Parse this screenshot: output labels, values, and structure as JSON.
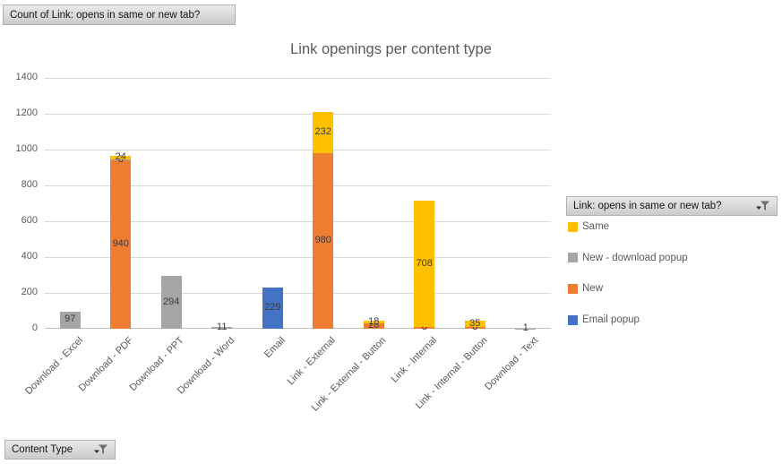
{
  "buttons": {
    "values_field": "Count of Link: opens in same or new tab?",
    "legend_field": "Link: opens in same or new tab?",
    "axis_field": "Content Type"
  },
  "chart_data": {
    "type": "bar",
    "stacked": true,
    "title": "Link openings per content type",
    "categories": [
      "Download - Excel",
      "Download - PDF",
      "Download - PPT",
      "Download - Word",
      "Email",
      "Link - External",
      "Link - External - Button",
      "Link - Internal",
      "Link - Internal - Button",
      "Download - Text"
    ],
    "series": [
      {
        "name": "Email popup",
        "color": "#4472C4",
        "values": [
          0,
          0,
          0,
          0,
          229,
          0,
          0,
          0,
          0,
          0
        ]
      },
      {
        "name": "New",
        "color": "#ED7D31",
        "values": [
          0,
          940,
          0,
          0,
          0,
          980,
          28,
          8,
          8,
          0
        ]
      },
      {
        "name": "New - download popup",
        "color": "#A5A5A5",
        "values": [
          97,
          3,
          294,
          11,
          0,
          0,
          0,
          0,
          0,
          1
        ]
      },
      {
        "name": "Same",
        "color": "#FFC000",
        "values": [
          0,
          24,
          0,
          0,
          0,
          232,
          18,
          708,
          35,
          0
        ]
      }
    ],
    "legend_order": [
      "Same",
      "New - download popup",
      "New",
      "Email popup"
    ],
    "legend_title": "Link: opens in same or new tab?",
    "xlabel": "",
    "ylabel": "",
    "ylim": [
      0,
      1400
    ],
    "ytick_step": 200,
    "grid": true,
    "legend_position": "right",
    "data_labels": true
  },
  "style": {
    "gridline_color": "#d9d9d9",
    "axis_line_color": "#bfbfbf",
    "label_color": "#595959",
    "data_label_color": "#3b3b3b"
  }
}
